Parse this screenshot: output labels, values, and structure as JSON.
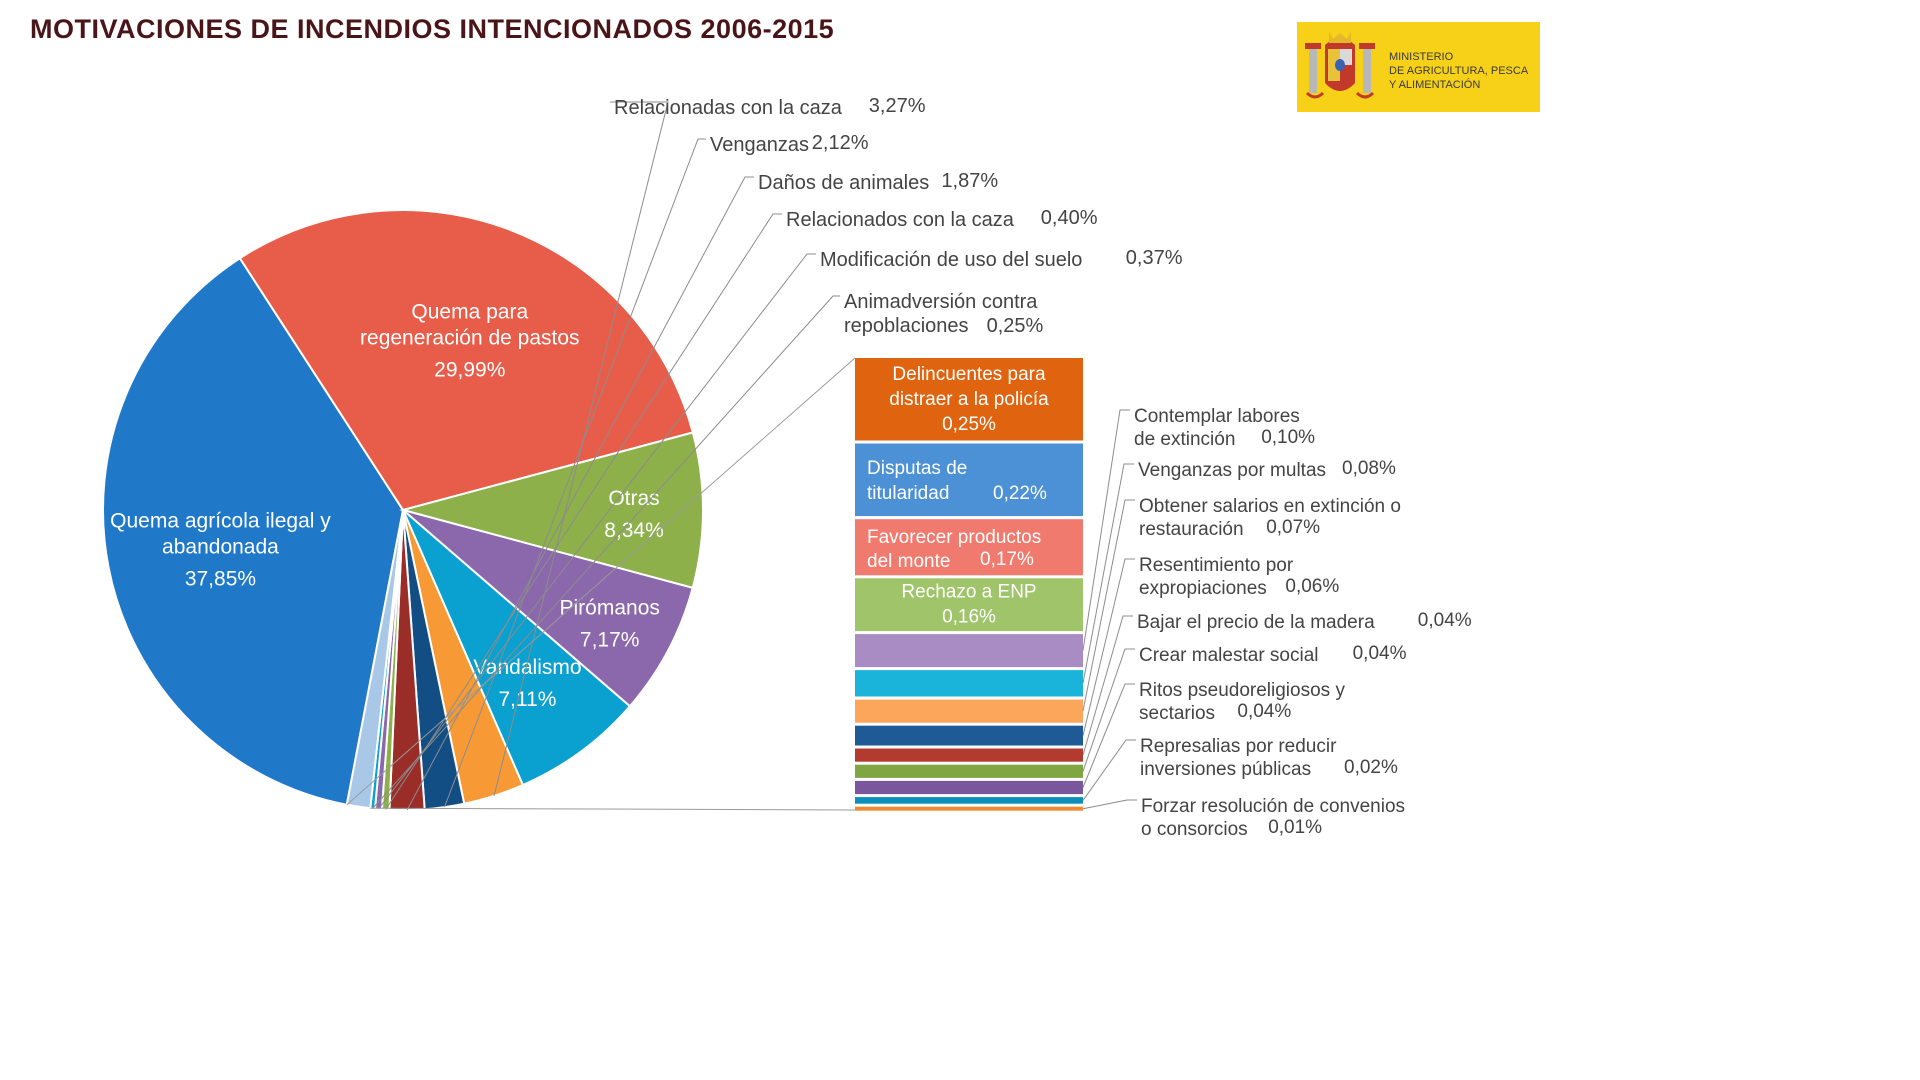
{
  "title": "MOTIVACIONES DE INCENDIOS INTENCIONADOS 2006-2015",
  "logo": {
    "lines": [
      "MINISTERIO",
      "DE AGRICULTURA, PESCA",
      "Y ALIMENTACIÓN"
    ]
  },
  "colors": {
    "quema_agricola": "#1f78c8",
    "quema_pastos": "#e85c4a",
    "otras": "#8db04b",
    "piromanos": "#8b67ab",
    "vandalismo": "#0aa0cf",
    "caza_orange": "#f79a35",
    "venganzas_navy": "#124d84",
    "danos_darkred": "#9b2d28",
    "detail_source": "#a9c8e8"
  },
  "chart_data": {
    "type": "pie",
    "slices": [
      {
        "label_lines": [
          "Quema agrícola ilegal y",
          "abandonada"
        ],
        "value_text": "37,85%",
        "value": 37.85,
        "color": "#1f78c8",
        "label_inside": true
      },
      {
        "label_lines": [
          "Quema para",
          "regeneración de pastos"
        ],
        "value_text": "29,99%",
        "value": 29.99,
        "color": "#e85c4a",
        "label_inside": true
      },
      {
        "label_lines": [
          "Otras"
        ],
        "value_text": "8,34%",
        "value": 8.34,
        "color": "#8db04b",
        "label_inside": true
      },
      {
        "label_lines": [
          "Pirómanos"
        ],
        "value_text": "7,17%",
        "value": 7.17,
        "color": "#8b67ab",
        "label_inside": true
      },
      {
        "label_lines": [
          "Vandalismo"
        ],
        "value_text": "7,11%",
        "value": 7.11,
        "color": "#0aa0cf",
        "label_inside": true
      },
      {
        "label_lines": [
          "Relacionadas con la caza"
        ],
        "value_text": "3,27%",
        "value": 3.27,
        "color": "#f79a35",
        "label_inside": false
      },
      {
        "label_lines": [
          "Venganzas"
        ],
        "value_text": "2,12%",
        "value": 2.12,
        "color": "#124d84",
        "label_inside": false
      },
      {
        "label_lines": [
          "Daños de animales"
        ],
        "value_text": "1,87%",
        "value": 1.87,
        "color": "#9b2d28",
        "label_inside": false
      },
      {
        "label_lines": [
          "Relacionados con la caza"
        ],
        "value_text": "0,40%",
        "value": 0.4,
        "color": "#8db04b",
        "label_inside": false
      },
      {
        "label_lines": [
          "Modificación de uso del suelo"
        ],
        "value_text": "0,37%",
        "value": 0.37,
        "color": "#8b67ab",
        "label_inside": false
      },
      {
        "label_lines": [
          "Animadversión contra",
          "repoblaciones"
        ],
        "value_text": "0,25%",
        "value": 0.25,
        "color": "#0aa0cf",
        "label_inside": false
      },
      {
        "label_lines": [],
        "value_text": "",
        "value": 1.26,
        "color": "#a9c8e8",
        "label_inside": false
      }
    ],
    "breakdown": [
      {
        "label_lines": [
          "Delincuentes para",
          "distraer a la policía"
        ],
        "value_text": "0,25%",
        "value": 0.25,
        "color": "#e06410",
        "label_inside": true
      },
      {
        "label_lines": [
          "Disputas de",
          "titularidad"
        ],
        "value_text": "0,22%",
        "value": 0.22,
        "color": "#4c90d6",
        "label_inside": true
      },
      {
        "label_lines": [
          "Favorecer productos",
          "del monte"
        ],
        "value_text": "0,17%",
        "value": 0.17,
        "color": "#f07a6d",
        "label_inside": true
      },
      {
        "label_lines": [
          "Rechazo a ENP"
        ],
        "value_text": "0,16%",
        "value": 0.16,
        "color": "#9fc46a",
        "label_inside": true
      },
      {
        "label_lines": [
          "Contemplar labores",
          "de extinción"
        ],
        "value_text": "0,10%",
        "value": 0.1,
        "color": "#a98cc4",
        "label_inside": false
      },
      {
        "label_lines": [
          "Venganzas por multas"
        ],
        "value_text": "0,08%",
        "value": 0.08,
        "color": "#1ab3da",
        "label_inside": false
      },
      {
        "label_lines": [
          "Obtener salarios en extinción o",
          "restauración"
        ],
        "value_text": "0,07%",
        "value": 0.07,
        "color": "#fca65c",
        "label_inside": false
      },
      {
        "label_lines": [
          "Resentimiento por",
          "expropiaciones"
        ],
        "value_text": "0,06%",
        "value": 0.06,
        "color": "#1d5a96",
        "label_inside": false
      },
      {
        "label_lines": [
          "Bajar el precio de la madera"
        ],
        "value_text": "0,04%",
        "value": 0.04,
        "color": "#b23a2f",
        "label_inside": false
      },
      {
        "label_lines": [
          "Crear malestar social"
        ],
        "value_text": "0,04%",
        "value": 0.04,
        "color": "#7fa643",
        "label_inside": false
      },
      {
        "label_lines": [
          "Ritos pseudoreligiosos y",
          "sectarios"
        ],
        "value_text": "0,04%",
        "value": 0.04,
        "color": "#7a569c",
        "label_inside": false
      },
      {
        "label_lines": [
          "Represalias por reducir",
          "inversiones públicas"
        ],
        "value_text": "0,02%",
        "value": 0.02,
        "color": "#0b8fb8",
        "label_inside": false
      },
      {
        "label_lines": [
          "Forzar resolución de convenios",
          "o consorcios"
        ],
        "value_text": "0,01%",
        "value": 0.01,
        "color": "#f08a30",
        "label_inside": false
      }
    ]
  }
}
